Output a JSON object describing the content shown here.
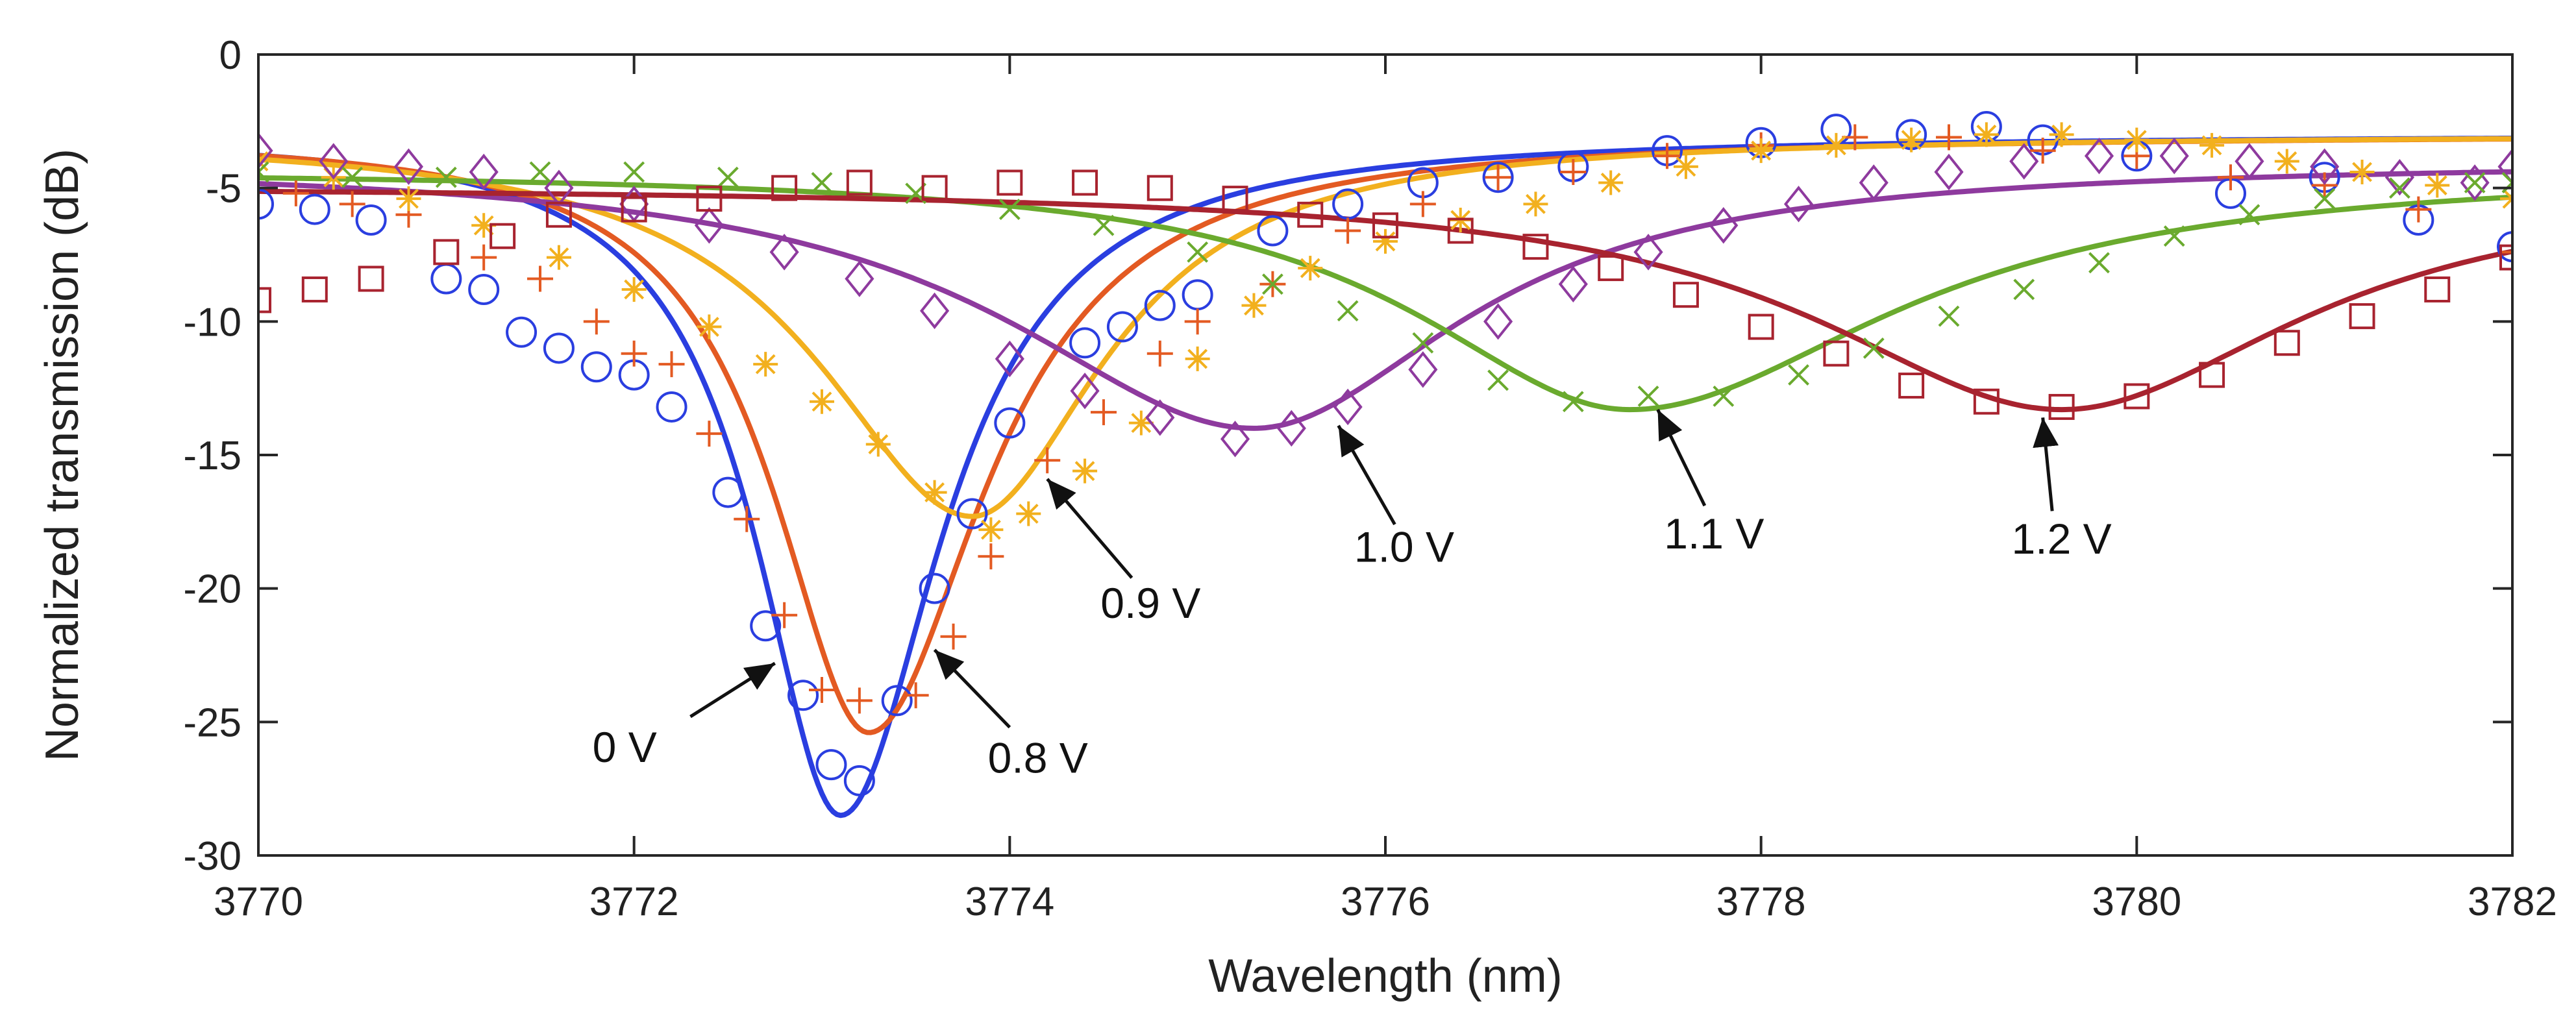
{
  "chart_data": {
    "type": "line",
    "title": "",
    "xlabel": "Wavelength (nm)",
    "ylabel": "Normalized transmission (dB)",
    "xlim": [
      3770,
      3782
    ],
    "ylim": [
      -30,
      0
    ],
    "xticks": [
      3770,
      3772,
      3774,
      3776,
      3778,
      3780,
      3782
    ],
    "yticks": [
      0,
      -5,
      -10,
      -15,
      -20,
      -25,
      -30
    ],
    "grid": false,
    "series": [
      {
        "name": "0 V",
        "color": "#2a3ee0",
        "marker": "circle",
        "fit": {
          "center": 3773.1,
          "depth": 25.5,
          "gamma_left": 0.55,
          "gamma_right": 0.65,
          "baseline": -3.0,
          "tilt": 0.0
        },
        "points": [
          [
            3770.0,
            -5.6
          ],
          [
            3770.3,
            -5.8
          ],
          [
            3770.6,
            -6.2
          ],
          [
            3771.0,
            -8.4
          ],
          [
            3771.2,
            -8.8
          ],
          [
            3771.4,
            -10.4
          ],
          [
            3771.6,
            -11.0
          ],
          [
            3771.8,
            -11.7
          ],
          [
            3772.0,
            -12.0
          ],
          [
            3772.2,
            -13.2
          ],
          [
            3772.5,
            -16.4
          ],
          [
            3772.7,
            -21.4
          ],
          [
            3772.9,
            -24.0
          ],
          [
            3773.05,
            -26.6
          ],
          [
            3773.2,
            -27.2
          ],
          [
            3773.4,
            -24.2
          ],
          [
            3773.6,
            -20.0
          ],
          [
            3773.8,
            -17.2
          ],
          [
            3774.0,
            -13.8
          ],
          [
            3774.4,
            -10.8
          ],
          [
            3774.6,
            -10.2
          ],
          [
            3774.8,
            -9.4
          ],
          [
            3775.0,
            -9.0
          ],
          [
            3775.4,
            -6.6
          ],
          [
            3775.8,
            -5.6
          ],
          [
            3776.2,
            -4.8
          ],
          [
            3776.6,
            -4.6
          ],
          [
            3777.0,
            -4.2
          ],
          [
            3777.5,
            -3.6
          ],
          [
            3778.0,
            -3.3
          ],
          [
            3778.4,
            -2.8
          ],
          [
            3778.8,
            -3.0
          ],
          [
            3779.2,
            -2.7
          ],
          [
            3779.5,
            -3.2
          ],
          [
            3780.0,
            -3.8
          ],
          [
            3780.5,
            -5.2
          ],
          [
            3781.0,
            -4.6
          ],
          [
            3781.5,
            -6.2
          ],
          [
            3782.0,
            -7.2
          ]
        ]
      },
      {
        "name": "0.8 V",
        "color": "#e35a22",
        "marker": "plus",
        "fit": {
          "center": 3773.25,
          "depth": 22.4,
          "gamma_left": 0.62,
          "gamma_right": 0.75,
          "baseline": -3.0,
          "tilt": 0.0
        },
        "points": [
          [
            3770.2,
            -5.2
          ],
          [
            3770.5,
            -5.6
          ],
          [
            3770.8,
            -6.0
          ],
          [
            3771.2,
            -7.6
          ],
          [
            3771.5,
            -8.4
          ],
          [
            3771.8,
            -10.0
          ],
          [
            3772.0,
            -11.2
          ],
          [
            3772.2,
            -11.6
          ],
          [
            3772.4,
            -14.2
          ],
          [
            3772.6,
            -17.4
          ],
          [
            3772.8,
            -21.0
          ],
          [
            3773.0,
            -23.8
          ],
          [
            3773.2,
            -24.2
          ],
          [
            3773.5,
            -24.0
          ],
          [
            3773.7,
            -21.8
          ],
          [
            3773.9,
            -18.8
          ],
          [
            3774.2,
            -15.2
          ],
          [
            3774.5,
            -13.4
          ],
          [
            3774.8,
            -11.2
          ],
          [
            3775.0,
            -10.0
          ],
          [
            3775.4,
            -8.6
          ],
          [
            3775.8,
            -6.6
          ],
          [
            3776.2,
            -5.6
          ],
          [
            3776.6,
            -4.6
          ],
          [
            3777.0,
            -4.4
          ],
          [
            3777.5,
            -3.8
          ],
          [
            3778.0,
            -3.4
          ],
          [
            3778.5,
            -3.1
          ],
          [
            3779.0,
            -3.1
          ],
          [
            3779.5,
            -3.6
          ],
          [
            3780.0,
            -3.8
          ],
          [
            3780.5,
            -4.6
          ],
          [
            3781.0,
            -4.9
          ],
          [
            3781.5,
            -5.8
          ],
          [
            3782.0,
            -7.4
          ]
        ]
      },
      {
        "name": "0.9 V",
        "color": "#f2b01e",
        "marker": "asterisk",
        "fit": {
          "center": 3773.8,
          "depth": 14.3,
          "gamma_left": 1.0,
          "gamma_right": 0.85,
          "baseline": -3.0,
          "tilt": 0.0
        },
        "points": [
          [
            3770.0,
            -4.0
          ],
          [
            3770.4,
            -4.6
          ],
          [
            3770.8,
            -5.4
          ],
          [
            3771.2,
            -6.4
          ],
          [
            3771.6,
            -7.6
          ],
          [
            3772.0,
            -8.8
          ],
          [
            3772.4,
            -10.2
          ],
          [
            3772.7,
            -11.6
          ],
          [
            3773.0,
            -13.0
          ],
          [
            3773.3,
            -14.6
          ],
          [
            3773.6,
            -16.4
          ],
          [
            3773.9,
            -17.8
          ],
          [
            3774.1,
            -17.2
          ],
          [
            3774.4,
            -15.6
          ],
          [
            3774.7,
            -13.8
          ],
          [
            3775.0,
            -11.4
          ],
          [
            3775.3,
            -9.4
          ],
          [
            3775.6,
            -8.0
          ],
          [
            3776.0,
            -7.0
          ],
          [
            3776.4,
            -6.2
          ],
          [
            3776.8,
            -5.6
          ],
          [
            3777.2,
            -4.8
          ],
          [
            3777.6,
            -4.2
          ],
          [
            3778.0,
            -3.6
          ],
          [
            3778.4,
            -3.4
          ],
          [
            3778.8,
            -3.2
          ],
          [
            3779.2,
            -3.0
          ],
          [
            3779.6,
            -3.0
          ],
          [
            3780.0,
            -3.2
          ],
          [
            3780.4,
            -3.4
          ],
          [
            3780.8,
            -4.0
          ],
          [
            3781.2,
            -4.4
          ],
          [
            3781.6,
            -4.9
          ],
          [
            3782.0,
            -5.4
          ]
        ]
      },
      {
        "name": "1.0 V",
        "color": "#8e3a9e",
        "marker": "diamond",
        "fit": {
          "center": 3775.3,
          "depth": 10.0,
          "gamma_left": 1.6,
          "gamma_right": 1.35,
          "baseline": -4.0,
          "tilt": 0.0
        },
        "points": [
          [
            3770.0,
            -3.6
          ],
          [
            3770.4,
            -4.0
          ],
          [
            3770.8,
            -4.2
          ],
          [
            3771.2,
            -4.4
          ],
          [
            3771.6,
            -5.0
          ],
          [
            3772.0,
            -5.6
          ],
          [
            3772.4,
            -6.4
          ],
          [
            3772.8,
            -7.4
          ],
          [
            3773.2,
            -8.4
          ],
          [
            3773.6,
            -9.6
          ],
          [
            3774.0,
            -11.4
          ],
          [
            3774.4,
            -12.6
          ],
          [
            3774.8,
            -13.6
          ],
          [
            3775.2,
            -14.4
          ],
          [
            3775.5,
            -14.0
          ],
          [
            3775.8,
            -13.2
          ],
          [
            3776.2,
            -11.8
          ],
          [
            3776.6,
            -10.0
          ],
          [
            3777.0,
            -8.6
          ],
          [
            3777.4,
            -7.4
          ],
          [
            3777.8,
            -6.4
          ],
          [
            3778.2,
            -5.6
          ],
          [
            3778.6,
            -4.8
          ],
          [
            3779.0,
            -4.4
          ],
          [
            3779.4,
            -4.0
          ],
          [
            3779.8,
            -3.8
          ],
          [
            3780.2,
            -3.8
          ],
          [
            3780.6,
            -4.0
          ],
          [
            3781.0,
            -4.2
          ],
          [
            3781.4,
            -4.6
          ],
          [
            3781.8,
            -4.8
          ],
          [
            3782.0,
            -4.2
          ]
        ]
      },
      {
        "name": "1.1 V",
        "color": "#6aaa2e",
        "marker": "x",
        "fit": {
          "center": 3777.3,
          "depth": 9.0,
          "gamma_left": 1.4,
          "gamma_right": 1.7,
          "baseline": -4.3,
          "tilt": 0.0
        },
        "points": [
          [
            3770.0,
            -4.4
          ],
          [
            3770.5,
            -4.6
          ],
          [
            3771.0,
            -4.6
          ],
          [
            3771.5,
            -4.4
          ],
          [
            3772.0,
            -4.4
          ],
          [
            3772.5,
            -4.6
          ],
          [
            3773.0,
            -4.8
          ],
          [
            3773.5,
            -5.2
          ],
          [
            3774.0,
            -5.8
          ],
          [
            3774.5,
            -6.4
          ],
          [
            3775.0,
            -7.4
          ],
          [
            3775.4,
            -8.6
          ],
          [
            3775.8,
            -9.6
          ],
          [
            3776.2,
            -10.8
          ],
          [
            3776.6,
            -12.2
          ],
          [
            3777.0,
            -13.0
          ],
          [
            3777.4,
            -12.8
          ],
          [
            3777.8,
            -12.8
          ],
          [
            3778.2,
            -12.0
          ],
          [
            3778.6,
            -11.0
          ],
          [
            3779.0,
            -9.8
          ],
          [
            3779.4,
            -8.8
          ],
          [
            3779.8,
            -7.8
          ],
          [
            3780.2,
            -6.8
          ],
          [
            3780.6,
            -6.0
          ],
          [
            3781.0,
            -5.4
          ],
          [
            3781.4,
            -5.0
          ],
          [
            3781.8,
            -4.8
          ],
          [
            3782.0,
            -4.8
          ]
        ]
      },
      {
        "name": "1.2 V",
        "color": "#a8232f",
        "marker": "square",
        "fit": {
          "center": 3779.6,
          "depth": 8.4,
          "gamma_left": 1.6,
          "gamma_right": 1.55,
          "baseline": -4.9,
          "tilt": 0.0
        },
        "points": [
          [
            3770.0,
            -9.2
          ],
          [
            3770.3,
            -8.8
          ],
          [
            3770.6,
            -8.4
          ],
          [
            3771.0,
            -7.4
          ],
          [
            3771.3,
            -6.8
          ],
          [
            3771.6,
            -6.0
          ],
          [
            3772.0,
            -5.8
          ],
          [
            3772.4,
            -5.4
          ],
          [
            3772.8,
            -5.0
          ],
          [
            3773.2,
            -4.8
          ],
          [
            3773.6,
            -5.0
          ],
          [
            3774.0,
            -4.8
          ],
          [
            3774.4,
            -4.8
          ],
          [
            3774.8,
            -5.0
          ],
          [
            3775.2,
            -5.4
          ],
          [
            3775.6,
            -6.0
          ],
          [
            3776.0,
            -6.4
          ],
          [
            3776.4,
            -6.6
          ],
          [
            3776.8,
            -7.2
          ],
          [
            3777.2,
            -8.0
          ],
          [
            3777.6,
            -9.0
          ],
          [
            3778.0,
            -10.2
          ],
          [
            3778.4,
            -11.2
          ],
          [
            3778.8,
            -12.4
          ],
          [
            3779.2,
            -13.0
          ],
          [
            3779.6,
            -13.2
          ],
          [
            3780.0,
            -12.8
          ],
          [
            3780.4,
            -12.0
          ],
          [
            3780.8,
            -10.8
          ],
          [
            3781.2,
            -9.8
          ],
          [
            3781.6,
            -8.8
          ],
          [
            3782.0,
            -7.6
          ]
        ]
      }
    ],
    "annotations": [
      {
        "text": "0 V",
        "series": "0 V",
        "tip": [
          3772.75,
          -22.8
        ],
        "tail": [
          3772.3,
          -24.8
        ],
        "label_at": [
          3771.95,
          -26.5
        ]
      },
      {
        "text": "0.8 V",
        "series": "0.8 V",
        "tip": [
          3773.6,
          -22.3
        ],
        "tail": [
          3774.0,
          -25.2
        ],
        "label_at": [
          3774.15,
          -26.9
        ]
      },
      {
        "text": "0.9 V",
        "series": "0.9 V",
        "tip": [
          3774.2,
          -15.9
        ],
        "tail": [
          3774.65,
          -19.6
        ],
        "label_at": [
          3774.75,
          -21.1
        ]
      },
      {
        "text": "1.0 V",
        "series": "1.0 V",
        "tip": [
          3775.75,
          -13.9
        ],
        "tail": [
          3776.05,
          -17.6
        ],
        "label_at": [
          3776.1,
          -19.0
        ]
      },
      {
        "text": "1.1 V",
        "series": "1.1 V",
        "tip": [
          3777.45,
          -13.3
        ],
        "tail": [
          3777.7,
          -16.9
        ],
        "label_at": [
          3777.75,
          -18.5
        ]
      },
      {
        "text": "1.2 V",
        "series": "1.2 V",
        "tip": [
          3779.5,
          -13.6
        ],
        "tail": [
          3779.55,
          -17.1
        ],
        "label_at": [
          3779.6,
          -18.7
        ]
      }
    ]
  }
}
